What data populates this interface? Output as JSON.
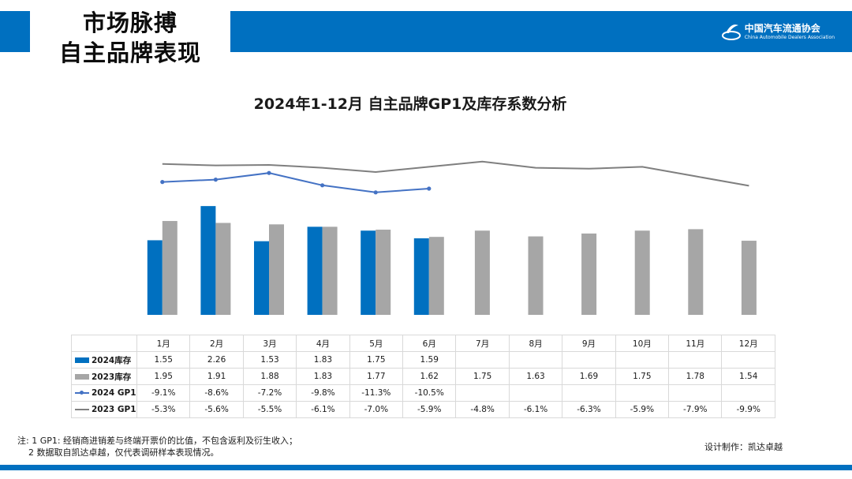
{
  "header": {
    "title_line1": "市场脉搏",
    "title_line2": "自主品牌表现",
    "logo_cn": "中国汽车流通协会",
    "logo_en": "China Automobile Dealers Association"
  },
  "chart_data": {
    "type": "bar",
    "title": "2024年1-12月 自主品牌GP1及库存系数分析",
    "categories": [
      "1月",
      "2月",
      "3月",
      "4月",
      "5月",
      "6月",
      "7月",
      "8月",
      "9月",
      "10月",
      "11月",
      "12月"
    ],
    "series": [
      {
        "name": "2024库存",
        "kind": "bar",
        "color": "#0070c0",
        "values": [
          1.55,
          2.26,
          1.53,
          1.83,
          1.75,
          1.59,
          null,
          null,
          null,
          null,
          null,
          null
        ],
        "labels": [
          "1.55",
          "2.26",
          "1.53",
          "1.83",
          "1.75",
          "1.59",
          "",
          "",
          "",
          "",
          "",
          ""
        ]
      },
      {
        "name": "2023库存",
        "kind": "bar",
        "color": "#a6a6a6",
        "values": [
          1.95,
          1.91,
          1.88,
          1.83,
          1.77,
          1.62,
          1.75,
          1.63,
          1.69,
          1.75,
          1.78,
          1.54
        ],
        "labels": [
          "1.95",
          "1.91",
          "1.88",
          "1.83",
          "1.77",
          "1.62",
          "1.75",
          "1.63",
          "1.69",
          "1.75",
          "1.78",
          "1.54"
        ]
      },
      {
        "name": "2024 GP1",
        "kind": "line",
        "color": "#4472c4",
        "values": [
          -9.1,
          -8.6,
          -7.2,
          -9.8,
          -11.3,
          -10.5,
          null,
          null,
          null,
          null,
          null,
          null
        ],
        "labels": [
          "-9.1%",
          "-8.6%",
          "-7.2%",
          "-9.8%",
          "-11.3%",
          "-10.5%",
          "",
          "",
          "",
          "",
          "",
          ""
        ]
      },
      {
        "name": "2023 GP1",
        "kind": "line",
        "color": "#7f7f7f",
        "values": [
          -5.3,
          -5.6,
          -5.5,
          -6.1,
          -7.0,
          -5.9,
          -4.8,
          -6.1,
          -6.3,
          -5.9,
          -7.9,
          -9.9
        ],
        "labels": [
          "-5.3%",
          "-5.6%",
          "-5.5%",
          "-6.1%",
          "-7.0%",
          "-5.9%",
          "-4.8%",
          "-6.1%",
          "-6.3%",
          "-5.9%",
          "-7.9%",
          "-9.9%"
        ]
      }
    ]
  },
  "footnote": {
    "line1": "注: 1 GP1: 经销商进销差与终端开票价的比值，不包含返利及衍生收入；",
    "line2": "2 数据取自凯达卓越，仅代表调研样本表现情况。"
  },
  "credit": "设计制作：凯达卓越"
}
